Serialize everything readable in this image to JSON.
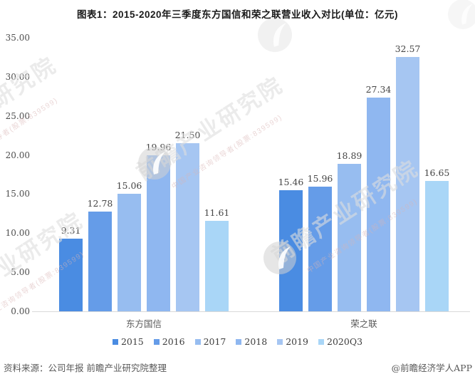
{
  "title": "图表1：2015-2020年三季度东方国信和荣之联营业收入对比(单位：亿元)",
  "chart_data": {
    "type": "bar",
    "groups": [
      "东方国信",
      "荣之联"
    ],
    "series": [
      {
        "name": "2015",
        "color": "#4a8ce2",
        "values": [
          9.31,
          15.46
        ]
      },
      {
        "name": "2016",
        "color": "#659ce8",
        "values": [
          12.78,
          15.96
        ]
      },
      {
        "name": "2017",
        "color": "#97bdf0",
        "values": [
          15.06,
          18.89
        ]
      },
      {
        "name": "2018",
        "color": "#8fb7f0",
        "values": [
          19.96,
          27.34
        ]
      },
      {
        "name": "2019",
        "color": "#a6c6f2",
        "values": [
          21.5,
          32.57
        ]
      },
      {
        "name": "2020Q3",
        "color": "#a9d6f7",
        "values": [
          11.61,
          16.65
        ]
      }
    ],
    "ylim": [
      0,
      35
    ],
    "ytick_step": 5,
    "yticks": [
      "35.00",
      "30.00",
      "25.00",
      "20.00",
      "15.00",
      "10.00",
      "5.00",
      "0.00"
    ],
    "value_labels": true,
    "grid": false,
    "legend_position": "bottom",
    "axis_line_color": "#d9d9d9"
  },
  "footer": {
    "source": "资料来源：公司年报 前瞻产业研究院整理",
    "credit": "@前瞻经济学人APP"
  },
  "watermark": {
    "logo_text": "前瞻产业研究院",
    "tagline": "中国产业咨询领导者(股票:839599)"
  }
}
